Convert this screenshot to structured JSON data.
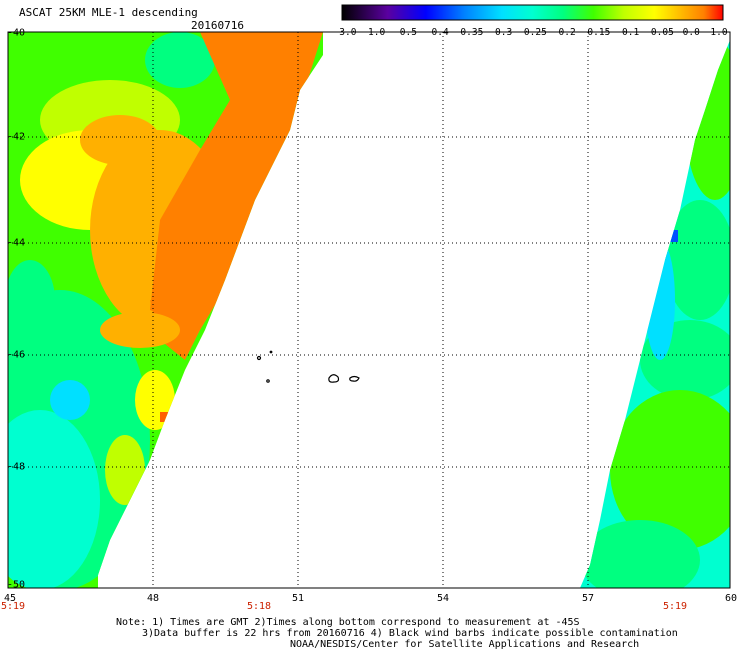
{
  "header": {
    "title": "ASCAT 25KM MLE-1 descending",
    "date": "20160716"
  },
  "colorbar": {
    "labels": [
      "-3.0",
      "-1.0",
      "-0.5",
      "-0.4",
      "-0.35",
      "-0.3",
      "-0.25",
      "-0.2",
      "-0.15",
      "-0.1",
      "-0.05",
      "0.0",
      "1.0"
    ],
    "colors": [
      "#000000",
      "#5a00a0",
      "#0000ff",
      "#0080ff",
      "#00e0ff",
      "#00ffd0",
      "#00ff80",
      "#40ff00",
      "#c0ff00",
      "#ffff00",
      "#ffb000",
      "#ff8000",
      "#ff0000"
    ]
  },
  "map": {
    "lat_labels": [
      "-40",
      "-42",
      "-44",
      "-46",
      "-48",
      "-50"
    ],
    "lon_labels": [
      "45",
      "48",
      "51",
      "54",
      "57",
      "60"
    ],
    "times": [
      "5:19",
      "5:18",
      "5:19"
    ],
    "swath_colors": {
      "orange": "#ff8000",
      "light_orange": "#ffb000",
      "yellow": "#ffff00",
      "green": "#40ff00",
      "aqua_green": "#00ff80",
      "cyan": "#00ffd0",
      "light_blue": "#00e0ff",
      "blue": "#0050ff"
    }
  },
  "notes": {
    "line1": "Note: 1) Times are GMT 2)Times along bottom correspond to measurement at -45S",
    "line2": "3)Data buffer is 22 hrs from 20160716 4) Black wind barbs indicate possible contamination",
    "line3": "NOAA/NESDIS/Center for Satellite Applications and Research"
  }
}
